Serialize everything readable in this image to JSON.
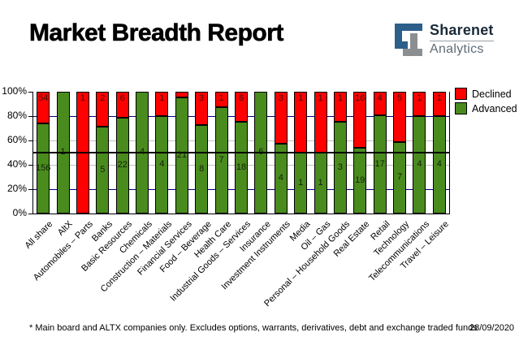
{
  "header": {
    "title": "Market Breadth Report",
    "logo": {
      "brand": "Sharenet",
      "sub": "Analytics"
    }
  },
  "colors": {
    "declined": "#fe0000",
    "advanced": "#4a8b1e",
    "gridline_major": "#000080",
    "gridline_minor": "#c0c0c0",
    "reference_line": "#000000",
    "logo_blue": "#2d5f8a",
    "logo_gray": "#8c8f92"
  },
  "chart_data": {
    "type": "bar",
    "stacked": true,
    "stack_mode": "percent_of_total",
    "categories": [
      "All share",
      "AltX",
      "Automobiles – Parts",
      "Banks",
      "Basic Resources",
      "Chemicals",
      "Construction – Materials",
      "Financial Services",
      "Food – Beverage",
      "Health Care",
      "Industrial Goods – Services",
      "Insurance",
      "Investment Instruments",
      "Media",
      "Oil – Gas",
      "Personal – Household Goods",
      "Real Estate",
      "Retail",
      "Technology",
      "Telecommunications",
      "Travel – Leisure"
    ],
    "series": [
      {
        "name": "Declined",
        "color": "#fe0000",
        "values": [
          54,
          0,
          1,
          2,
          6,
          0,
          1,
          1,
          3,
          1,
          6,
          0,
          3,
          1,
          1,
          1,
          16,
          4,
          5,
          1,
          1
        ]
      },
      {
        "name": "Advanced",
        "color": "#4a8b1e",
        "values": [
          156,
          1,
          0,
          5,
          22,
          4,
          4,
          21,
          8,
          7,
          18,
          6,
          4,
          1,
          1,
          3,
          19,
          17,
          7,
          4,
          4
        ]
      }
    ],
    "declined_label_hidden_for": [
      "Financial Services"
    ],
    "y_axis": {
      "ticks": [
        "0%",
        "20%",
        "40%",
        "60%",
        "80%",
        "100%"
      ],
      "range": [
        0,
        100
      ]
    },
    "reference_line_pct": 50,
    "grid": "horizontal, navy at 20/80, silver at 40/60",
    "legend_position": "top-right"
  },
  "legend": [
    {
      "label": "Declined",
      "color": "#fe0000"
    },
    {
      "label": "Advanced",
      "color": "#4a8b1e"
    }
  ],
  "footer": {
    "note": "* Main board and ALTX companies only. Excludes options, warrants, derivatives, debt and exchange traded funds",
    "date": "28/09/2020"
  }
}
